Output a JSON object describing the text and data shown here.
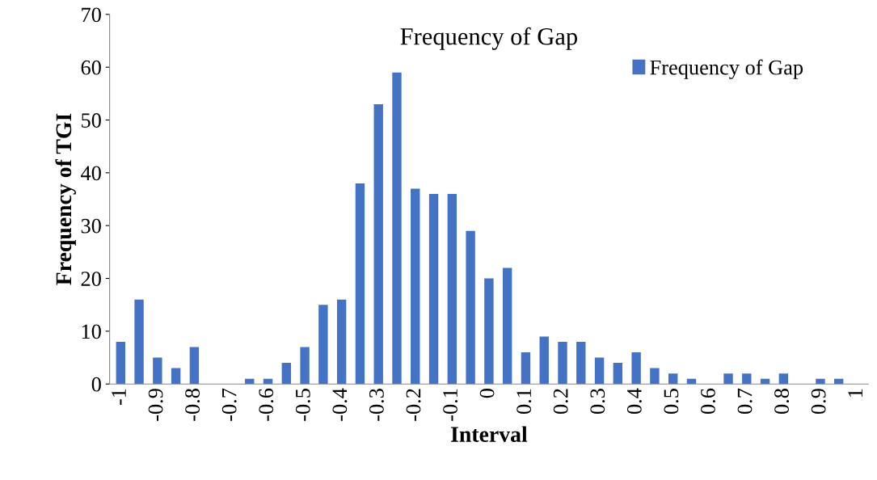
{
  "chart_data": {
    "type": "bar",
    "title": "Frequency of Gap",
    "xlabel": "Interval",
    "ylabel": "Frequency of TGI",
    "categories": [
      "-1",
      null,
      "-0.9",
      null,
      "-0.8",
      null,
      "-0.7",
      null,
      "-0.6",
      null,
      "-0.5",
      null,
      "-0.4",
      null,
      "-0.3",
      null,
      "-0.2",
      null,
      "-0.1",
      null,
      "0",
      null,
      "0.1",
      null,
      "0.2",
      null,
      "0.3",
      null,
      "0.4",
      null,
      "0.5",
      null,
      "0.6",
      null,
      "0.7",
      null,
      "0.8",
      null,
      "0.9",
      null,
      "1"
    ],
    "series": [
      {
        "name": "Frequency of Gap",
        "color": "#4472c4",
        "values": [
          8,
          16,
          5,
          3,
          7,
          0,
          0,
          1,
          1,
          4,
          7,
          15,
          16,
          38,
          53,
          59,
          37,
          36,
          36,
          29,
          20,
          22,
          6,
          9,
          8,
          8,
          5,
          4,
          6,
          3,
          2,
          1,
          0,
          2,
          2,
          1,
          2,
          0,
          1,
          1,
          0
        ]
      }
    ],
    "ylim": [
      0,
      70
    ],
    "yticks": [
      0,
      10,
      20,
      30,
      40,
      50,
      60,
      70
    ],
    "grid": false,
    "legend": "top right"
  }
}
